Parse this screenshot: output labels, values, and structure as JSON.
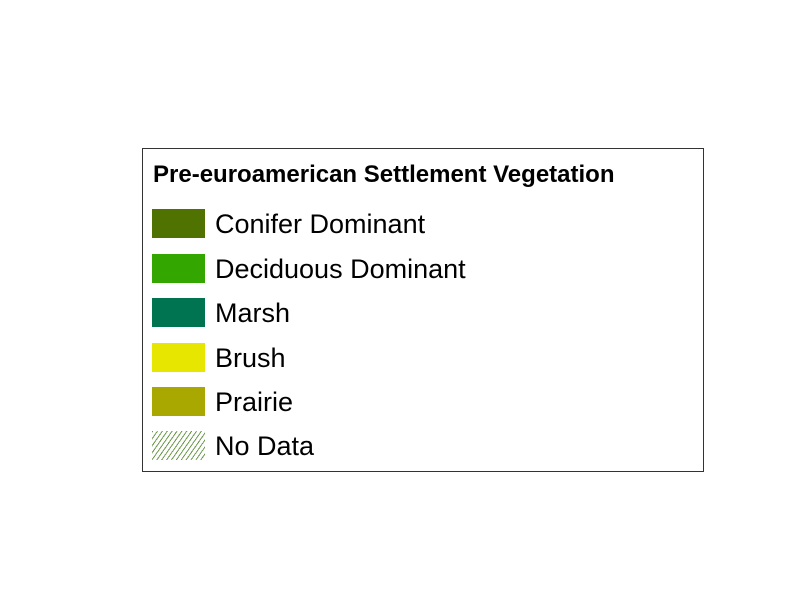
{
  "legend": {
    "title": "Pre-euroamerican Settlement Vegetation",
    "items": [
      {
        "label": "Conifer Dominant",
        "color": "#4f7200",
        "pattern": "solid"
      },
      {
        "label": "Deciduous Dominant",
        "color": "#33a600",
        "pattern": "solid"
      },
      {
        "label": "Marsh",
        "color": "#007351",
        "pattern": "solid"
      },
      {
        "label": "Brush",
        "color": "#e6e600",
        "pattern": "solid"
      },
      {
        "label": "Prairie",
        "color": "#a8a800",
        "pattern": "solid"
      },
      {
        "label": "No Data",
        "color": "#6e9a4e",
        "pattern": "hatch"
      }
    ]
  }
}
